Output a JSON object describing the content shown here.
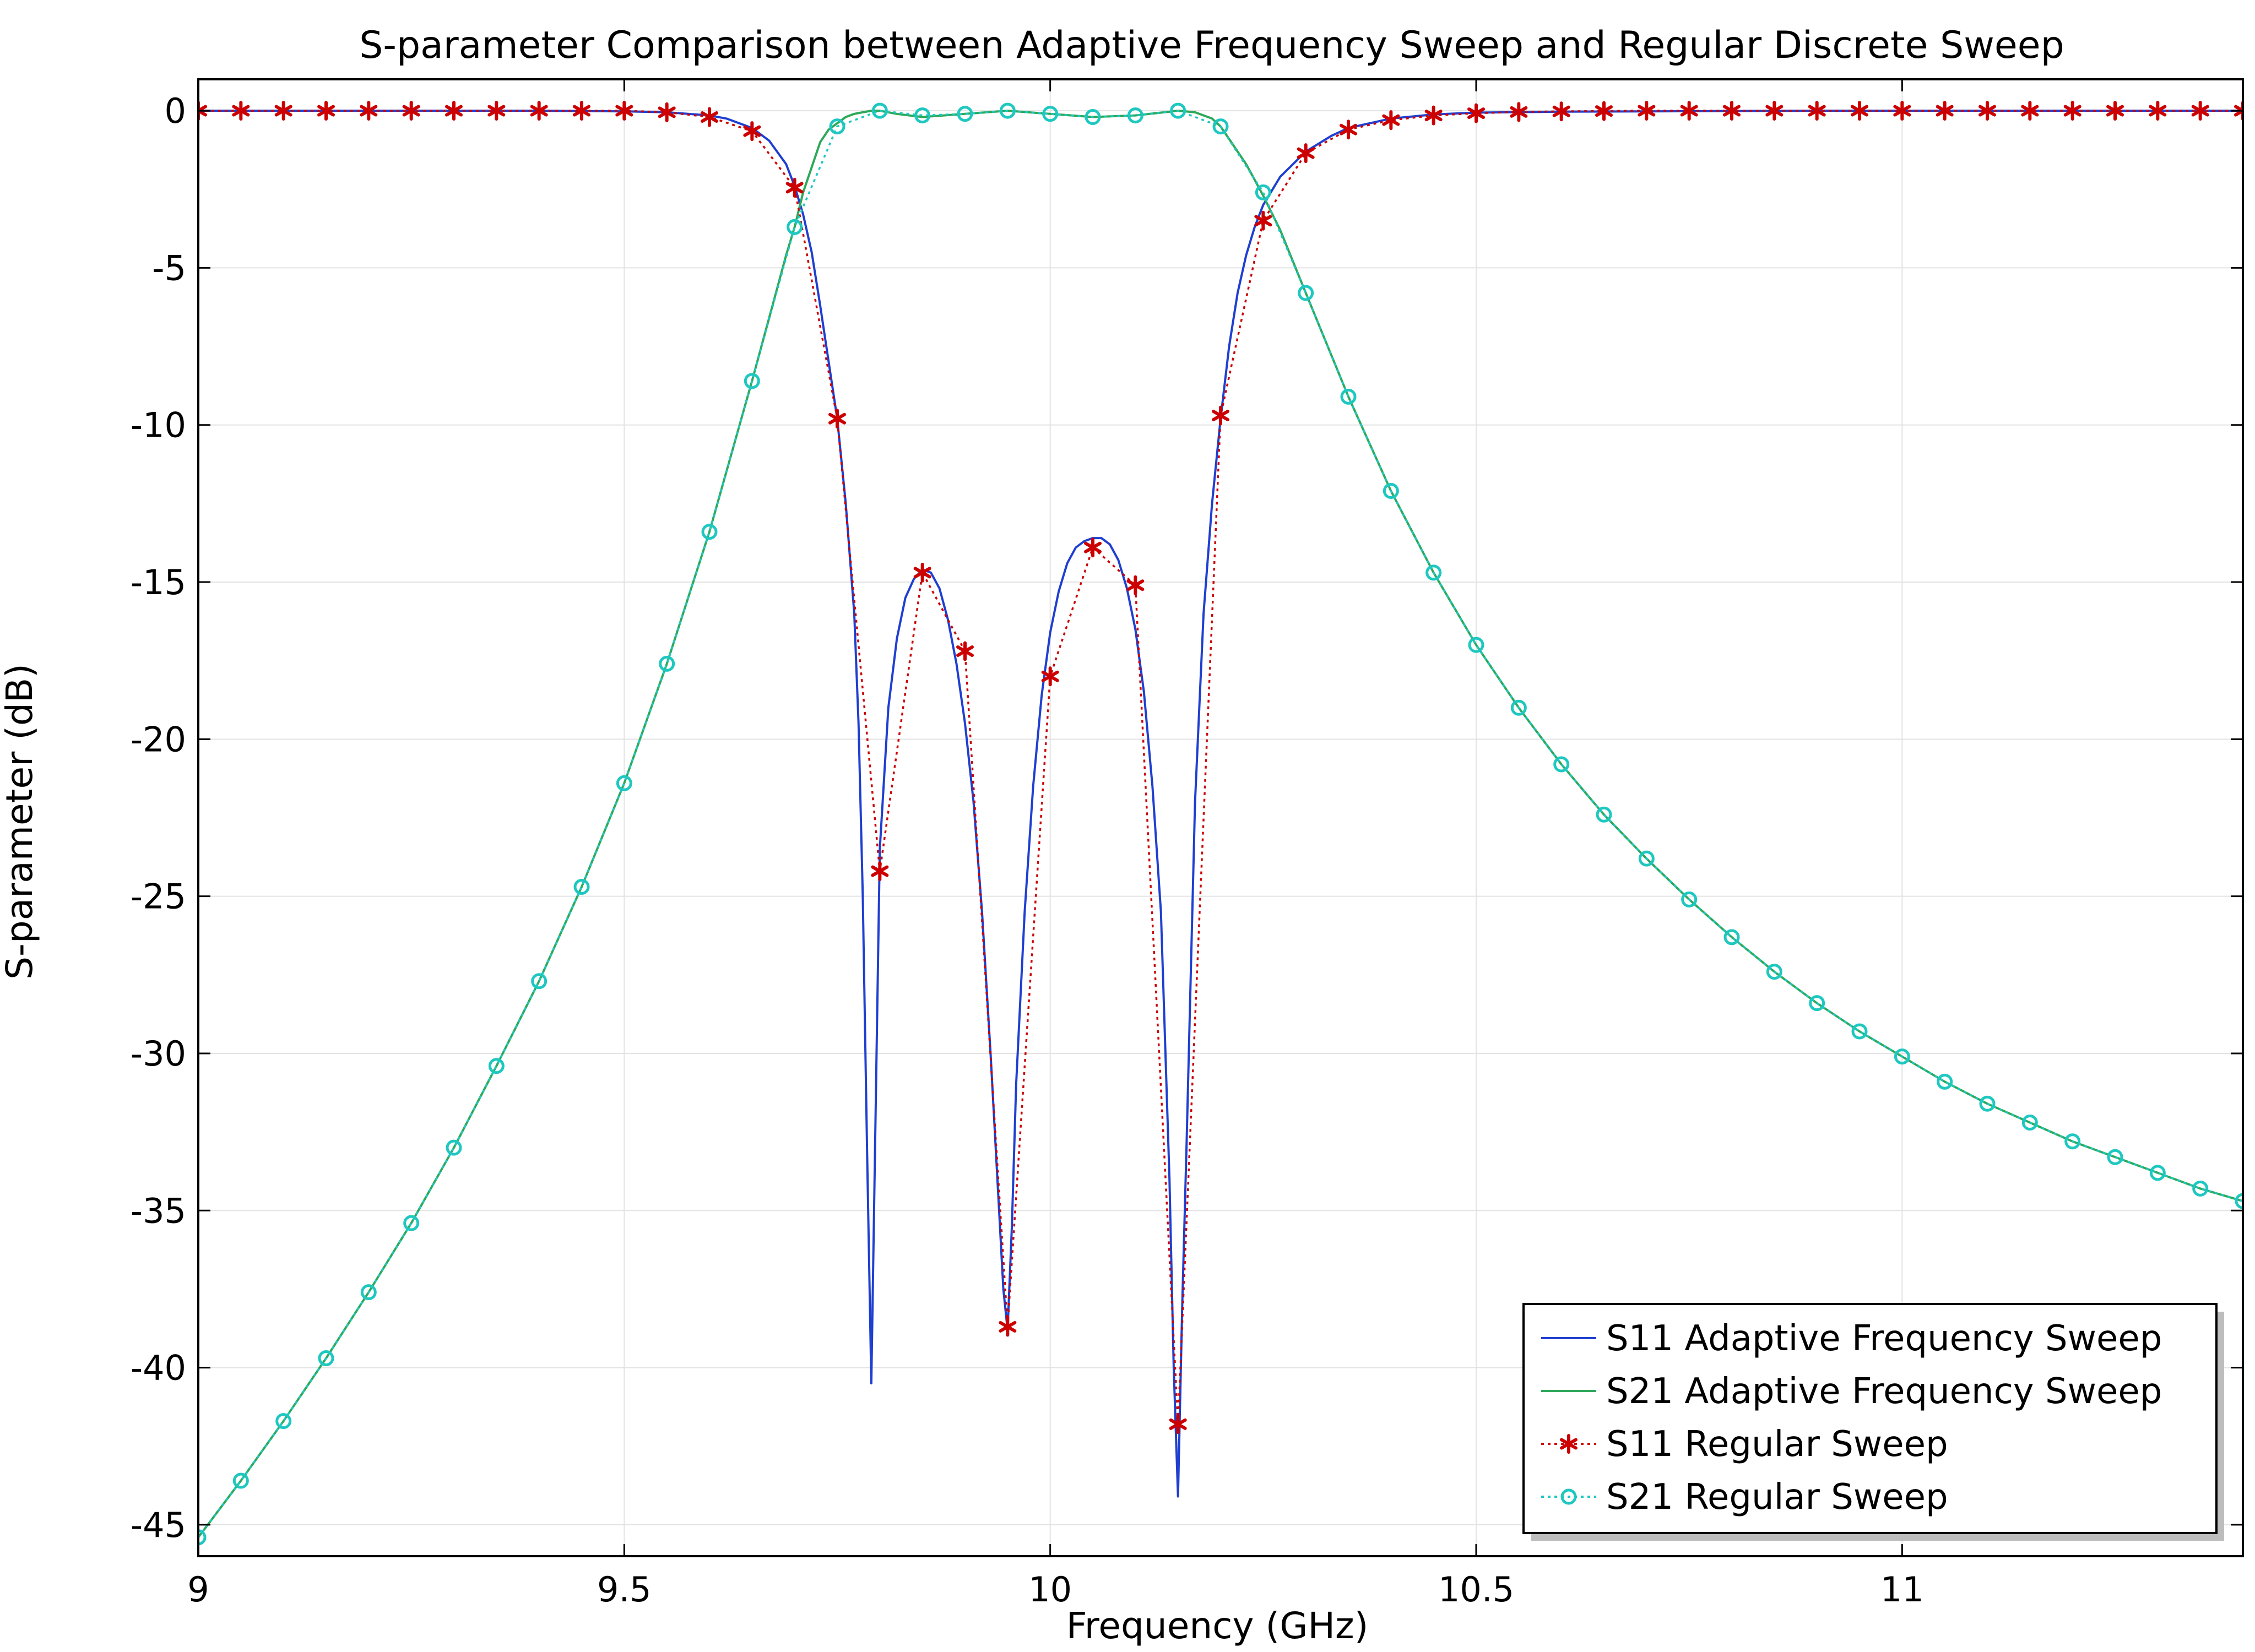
{
  "chart_data": {
    "type": "line",
    "title": "S-parameter Comparison between Adaptive Frequency Sweep and Regular Discrete Sweep",
    "xlabel": "Frequency (GHz)",
    "ylabel": "S-parameter (dB)",
    "xlim": [
      9.0,
      11.4
    ],
    "ylim": [
      -46,
      1
    ],
    "xticks": [
      9,
      9.5,
      10,
      10.5,
      11
    ],
    "xtick_labels": [
      "9",
      "9.5",
      "10",
      "10.5",
      "11"
    ],
    "yticks": [
      0,
      -5,
      -10,
      -15,
      -20,
      -25,
      -30,
      -35,
      -40,
      -45
    ],
    "ytick_labels": [
      "0",
      "-5",
      "-10",
      "-15",
      "-20",
      "-25",
      "-30",
      "-35",
      "-40",
      "-45"
    ],
    "grid": true,
    "legend_position": "bottom-right",
    "series": [
      {
        "name": "S11 Adaptive Frequency Sweep",
        "color": "#1f3fd1",
        "style": "solid",
        "marker": "none",
        "x": [
          9.0,
          9.1,
          9.2,
          9.3,
          9.4,
          9.5,
          9.55,
          9.6,
          9.62,
          9.65,
          9.67,
          9.69,
          9.7,
          9.71,
          9.72,
          9.73,
          9.74,
          9.75,
          9.76,
          9.77,
          9.775,
          9.78,
          9.785,
          9.79,
          9.795,
          9.8,
          9.81,
          9.82,
          9.83,
          9.84,
          9.85,
          9.86,
          9.87,
          9.88,
          9.89,
          9.9,
          9.91,
          9.92,
          9.93,
          9.94,
          9.945,
          9.95,
          9.955,
          9.96,
          9.97,
          9.98,
          9.99,
          10.0,
          10.01,
          10.02,
          10.03,
          10.04,
          10.05,
          10.06,
          10.07,
          10.08,
          10.09,
          10.1,
          10.11,
          10.12,
          10.13,
          10.14,
          10.145,
          10.15,
          10.155,
          10.16,
          10.17,
          10.18,
          10.19,
          10.2,
          10.21,
          10.22,
          10.23,
          10.24,
          10.25,
          10.27,
          10.3,
          10.33,
          10.35,
          10.4,
          10.45,
          10.5,
          10.6,
          10.7,
          10.8,
          10.9,
          11.0,
          11.1,
          11.2,
          11.3,
          11.4
        ],
        "y": [
          0,
          0,
          0,
          0,
          0,
          -0.02,
          -0.05,
          -0.15,
          -0.25,
          -0.55,
          -0.95,
          -1.7,
          -2.4,
          -3.3,
          -4.5,
          -6.2,
          -8.0,
          -9.8,
          -12.5,
          -16.0,
          -19.5,
          -25.0,
          -33.0,
          -40.5,
          -32.0,
          -23.5,
          -19.0,
          -16.8,
          -15.5,
          -14.9,
          -14.6,
          -14.7,
          -15.2,
          -16.2,
          -17.6,
          -19.5,
          -22.0,
          -25.5,
          -30.0,
          -35.0,
          -37.5,
          -38.8,
          -35.5,
          -31.0,
          -25.5,
          -21.5,
          -18.6,
          -16.6,
          -15.3,
          -14.4,
          -13.9,
          -13.7,
          -13.6,
          -13.6,
          -13.8,
          -14.3,
          -15.2,
          -16.5,
          -18.5,
          -21.5,
          -25.5,
          -34.0,
          -40.0,
          -44.1,
          -38.0,
          -33.0,
          -22.0,
          -16.0,
          -12.5,
          -9.8,
          -7.5,
          -5.8,
          -4.6,
          -3.7,
          -3.0,
          -2.1,
          -1.3,
          -0.8,
          -0.55,
          -0.25,
          -0.12,
          -0.06,
          -0.03,
          -0.02,
          -0.01,
          0,
          0,
          0,
          0,
          0,
          0
        ]
      },
      {
        "name": "S21 Adaptive Frequency Sweep",
        "color": "#2ea85a",
        "style": "solid",
        "marker": "none",
        "x": [
          9.0,
          9.05,
          9.1,
          9.15,
          9.2,
          9.25,
          9.3,
          9.35,
          9.4,
          9.45,
          9.5,
          9.55,
          9.6,
          9.65,
          9.67,
          9.69,
          9.7,
          9.71,
          9.72,
          9.73,
          9.74,
          9.75,
          9.76,
          9.77,
          9.78,
          9.79,
          9.8,
          9.82,
          9.85,
          9.9,
          9.95,
          10.0,
          10.05,
          10.1,
          10.15,
          10.17,
          10.19,
          10.2,
          10.21,
          10.22,
          10.23,
          10.24,
          10.25,
          10.27,
          10.3,
          10.35,
          10.4,
          10.45,
          10.5,
          10.55,
          10.6,
          10.65,
          10.7,
          10.75,
          10.8,
          10.85,
          10.9,
          10.95,
          11.0,
          11.05,
          11.1,
          11.15,
          11.2,
          11.25,
          11.3,
          11.35,
          11.4
        ],
        "y": [
          -45.4,
          -43.6,
          -41.7,
          -39.7,
          -37.6,
          -35.4,
          -33.0,
          -30.4,
          -27.7,
          -24.7,
          -21.4,
          -17.6,
          -13.4,
          -8.6,
          -6.6,
          -4.6,
          -3.7,
          -2.6,
          -1.8,
          -1.0,
          -0.6,
          -0.4,
          -0.2,
          -0.1,
          -0.05,
          0,
          0,
          -0.1,
          -0.2,
          -0.1,
          0,
          -0.1,
          -0.2,
          -0.15,
          0,
          -0.05,
          -0.25,
          -0.5,
          -0.9,
          -1.3,
          -1.7,
          -2.2,
          -2.7,
          -3.8,
          -5.8,
          -9.1,
          -12.1,
          -14.7,
          -17.0,
          -19.0,
          -20.8,
          -22.4,
          -23.8,
          -25.1,
          -26.3,
          -27.4,
          -28.4,
          -29.3,
          -30.1,
          -30.9,
          -31.6,
          -32.2,
          -32.8,
          -33.3,
          -33.8,
          -34.3,
          -34.7
        ]
      },
      {
        "name": "S11 Regular Sweep",
        "color": "#cc0000",
        "style": "dotted",
        "marker": "asterisk",
        "x": [
          9.0,
          9.05,
          9.1,
          9.15,
          9.2,
          9.25,
          9.3,
          9.35,
          9.4,
          9.45,
          9.5,
          9.55,
          9.6,
          9.65,
          9.7,
          9.75,
          9.8,
          9.85,
          9.9,
          9.95,
          10.0,
          10.05,
          10.1,
          10.15,
          10.2,
          10.25,
          10.3,
          10.35,
          10.4,
          10.45,
          10.5,
          10.55,
          10.6,
          10.65,
          10.7,
          10.75,
          10.8,
          10.85,
          10.9,
          10.95,
          11.0,
          11.05,
          11.1,
          11.15,
          11.2,
          11.25,
          11.3,
          11.35,
          11.4
        ],
        "y": [
          0,
          0,
          0,
          0,
          0,
          0,
          0,
          0,
          0,
          0,
          0,
          -0.05,
          -0.2,
          -0.65,
          -2.45,
          -9.8,
          -24.2,
          -14.7,
          -17.2,
          -38.7,
          -18.0,
          -13.9,
          -15.1,
          -41.8,
          -9.7,
          -3.5,
          -1.35,
          -0.6,
          -0.3,
          -0.15,
          -0.08,
          -0.04,
          -0.02,
          -0.01,
          0,
          0,
          0,
          0,
          0,
          0,
          0,
          0,
          0,
          0,
          0,
          0,
          0,
          0,
          0
        ]
      },
      {
        "name": "S21 Regular Sweep",
        "color": "#1ec8c0",
        "style": "dotted",
        "marker": "circle",
        "x": [
          9.0,
          9.05,
          9.1,
          9.15,
          9.2,
          9.25,
          9.3,
          9.35,
          9.4,
          9.45,
          9.5,
          9.55,
          9.6,
          9.65,
          9.7,
          9.75,
          9.8,
          9.85,
          9.9,
          9.95,
          10.0,
          10.05,
          10.1,
          10.15,
          10.2,
          10.25,
          10.3,
          10.35,
          10.4,
          10.45,
          10.5,
          10.55,
          10.6,
          10.65,
          10.7,
          10.75,
          10.8,
          10.85,
          10.9,
          10.95,
          11.0,
          11.05,
          11.1,
          11.15,
          11.2,
          11.25,
          11.3,
          11.35,
          11.4
        ],
        "y": [
          -45.4,
          -43.6,
          -41.7,
          -39.7,
          -37.6,
          -35.4,
          -33.0,
          -30.4,
          -27.7,
          -24.7,
          -21.4,
          -17.6,
          -13.4,
          -8.6,
          -3.7,
          -0.5,
          0,
          -0.15,
          -0.1,
          0,
          -0.1,
          -0.2,
          -0.15,
          0,
          -0.5,
          -2.6,
          -5.8,
          -9.1,
          -12.1,
          -14.7,
          -17.0,
          -19.0,
          -20.8,
          -22.4,
          -23.8,
          -25.1,
          -26.3,
          -27.4,
          -28.4,
          -29.3,
          -30.1,
          -30.9,
          -31.6,
          -32.2,
          -32.8,
          -33.3,
          -33.8,
          -34.3,
          -34.7
        ]
      }
    ]
  }
}
